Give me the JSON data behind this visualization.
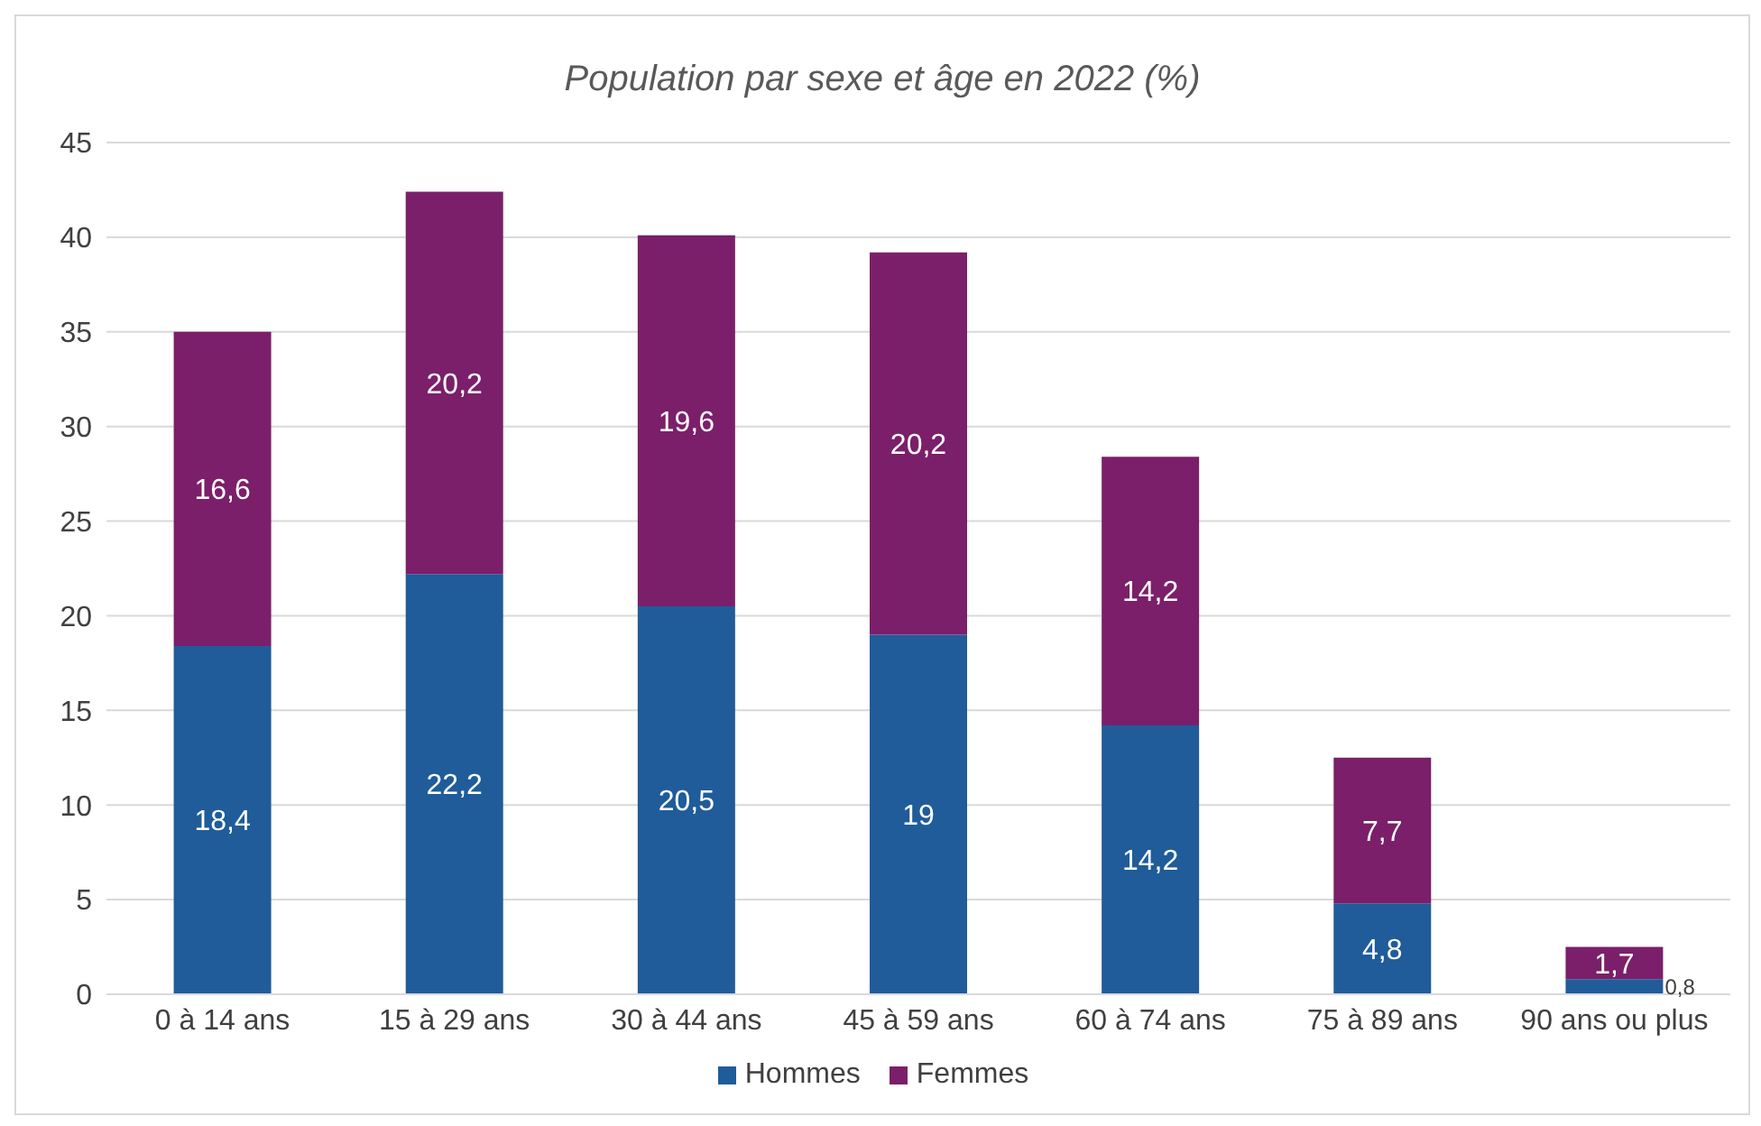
{
  "chart_data": {
    "type": "bar",
    "title": "Population par sexe et âge en 2022 (%)",
    "categories": [
      "0 à 14 ans",
      "15 à 29 ans",
      "30 à 44 ans",
      "45 à 59 ans",
      "60 à 74 ans",
      "75 à 89 ans",
      "90 ans ou plus"
    ],
    "stacked": true,
    "series": [
      {
        "name": "Hommes",
        "color": "#1f5c99",
        "values": [
          18.4,
          22.2,
          20.5,
          19,
          14.2,
          4.8,
          0.8
        ],
        "value_labels": [
          "18,4",
          "22,2",
          "20,5",
          "19",
          "14,2",
          "4,8",
          "0,8"
        ]
      },
      {
        "name": "Femmes",
        "color": "#7b1f6a",
        "values": [
          16.6,
          20.2,
          19.6,
          20.2,
          14.2,
          7.7,
          1.7
        ],
        "value_labels": [
          "16,6",
          "20,2",
          "19,6",
          "20,2",
          "14,2",
          "7,7",
          "1,7"
        ]
      }
    ],
    "ylim": [
      0,
      45
    ],
    "yticks": [
      0,
      5,
      10,
      15,
      20,
      25,
      30,
      35,
      40,
      45
    ],
    "grid": "y",
    "legend": "bottom"
  }
}
